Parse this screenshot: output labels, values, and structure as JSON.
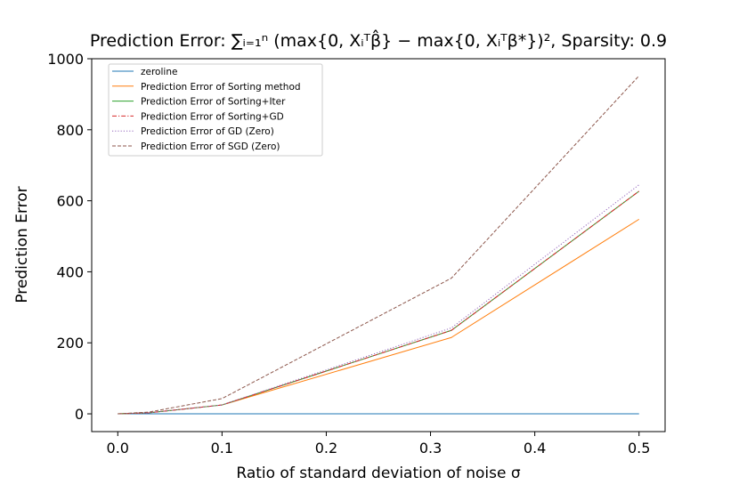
{
  "chart_data": {
    "type": "line",
    "title": "Prediction Error: ∑ᵢ₌₁ⁿ (max{0, Xᵢᵀβ̂} − max{0, Xᵢᵀβ*})², Sparsity: 0.9",
    "xlabel": "Ratio of standard deviation of noise σ",
    "ylabel": "Prediction Error",
    "xlim": [
      -0.025,
      0.525
    ],
    "ylim": [
      -50,
      1000
    ],
    "xticks": [
      0.0,
      0.1,
      0.2,
      0.3,
      0.4,
      0.5
    ],
    "xtick_labels": [
      "0.0",
      "0.1",
      "0.2",
      "0.3",
      "0.4",
      "0.5"
    ],
    "yticks": [
      0,
      200,
      400,
      600,
      800,
      1000
    ],
    "ytick_labels": [
      "0",
      "200",
      "400",
      "600",
      "800",
      "1000"
    ],
    "grid": false,
    "legend_position": "top-left",
    "x": [
      0.0,
      0.03,
      0.1,
      0.32,
      0.5
    ],
    "series": [
      {
        "name": "zeroline",
        "values": [
          0,
          0,
          0,
          0,
          0
        ],
        "color": "#1f77b4",
        "dash": "solid"
      },
      {
        "name": "Prediction Error of Sorting method",
        "values": [
          0,
          3,
          25,
          215,
          548
        ],
        "color": "#ff7f0e",
        "dash": "solid"
      },
      {
        "name": "Prediction Error of Sorting+Iter",
        "values": [
          0,
          3,
          25,
          235,
          627
        ],
        "color": "#2ca02c",
        "dash": "solid"
      },
      {
        "name": "Prediction Error of Sorting+GD",
        "values": [
          0,
          3,
          25,
          235,
          627
        ],
        "color": "#d62728",
        "dash": "dashdot"
      },
      {
        "name": "Prediction Error of GD (Zero)",
        "values": [
          0,
          3,
          25,
          242,
          645
        ],
        "color": "#9467bd",
        "dash": "dotted"
      },
      {
        "name": "Prediction Error of SGD (Zero)",
        "values": [
          0,
          5,
          43,
          382,
          952
        ],
        "color": "#8c564b",
        "dash": "dashed"
      }
    ]
  }
}
